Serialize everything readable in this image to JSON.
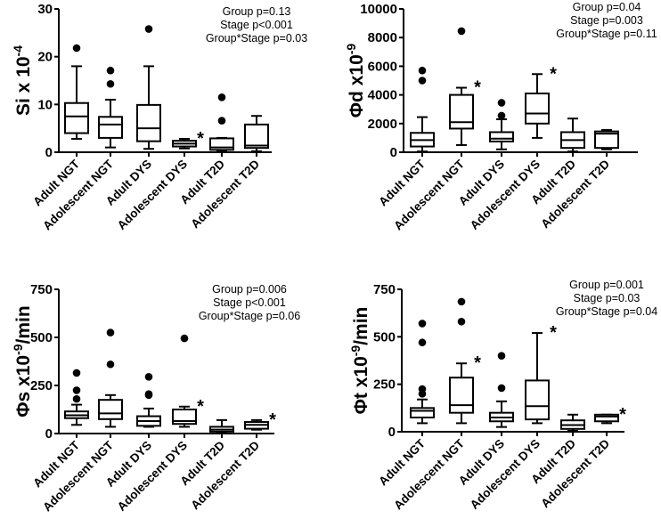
{
  "chart_data": [
    {
      "type": "box",
      "ylabel": "Si x 10",
      "ylabel_exp": "-4",
      "ylabel_suffix": "",
      "ylim": [
        0,
        30
      ],
      "yticks": [
        0,
        10,
        20,
        30
      ],
      "categories": [
        "Adult NGT",
        "Adolescent NGT",
        "Adult DYS",
        "Adolescent DYS",
        "Adult T2D",
        "Adolescent T2D"
      ],
      "stats": [
        "Group p=0.13",
        "Stage p<0.001",
        "Group*Stage p=0.03"
      ],
      "boxes": [
        {
          "lo": 2.8,
          "q1": 4.0,
          "med": 7.5,
          "q3": 10.3,
          "hi": 18,
          "outliers": [
            21.8
          ],
          "sig": false
        },
        {
          "lo": 1.0,
          "q1": 3.0,
          "med": 5.8,
          "q3": 7.4,
          "hi": 11,
          "outliers": [
            14.3,
            17.1
          ],
          "sig": false
        },
        {
          "lo": 0.7,
          "q1": 2.3,
          "med": 5.0,
          "q3": 9.9,
          "hi": 18,
          "outliers": [
            25.8
          ],
          "sig": false
        },
        {
          "lo": 0.8,
          "q1": 1.2,
          "med": 1.8,
          "q3": 2.4,
          "hi": 2.8,
          "outliers": [],
          "sig": true
        },
        {
          "lo": 0.2,
          "q1": 0.5,
          "med": 1.0,
          "q3": 2.9,
          "hi": 3.0,
          "outliers": [
            6.6,
            11.5
          ],
          "sig": false
        },
        {
          "lo": 0.2,
          "q1": 0.9,
          "med": 1.4,
          "q3": 5.8,
          "hi": 7.6,
          "outliers": [],
          "sig": false
        }
      ]
    },
    {
      "type": "box",
      "ylabel": "Φd x10",
      "ylabel_exp": "-9",
      "ylabel_suffix": "",
      "ylim": [
        0,
        10000
      ],
      "yticks": [
        0,
        2000,
        4000,
        6000,
        8000,
        10000
      ],
      "categories": [
        "Adult NGT",
        "Adolescent NGT",
        "Adult DYS",
        "Adolescent DYS",
        "Adult T2D",
        "Adolescent T2D"
      ],
      "stats": [
        "Group p=0.04",
        "Stage p=0.003",
        "Group*Stage p=0.11"
      ],
      "boxes": [
        {
          "lo": 50,
          "q1": 400,
          "med": 850,
          "q3": 1350,
          "hi": 2450,
          "outliers": [
            5000,
            5700
          ],
          "sig": false
        },
        {
          "lo": 500,
          "q1": 1650,
          "med": 2100,
          "q3": 4000,
          "hi": 4500,
          "outliers": [
            8450
          ],
          "sig": true
        },
        {
          "lo": 200,
          "q1": 750,
          "med": 950,
          "q3": 1400,
          "hi": 2300,
          "outliers": [
            2550,
            3450
          ],
          "sig": false
        },
        {
          "lo": 1000,
          "q1": 2000,
          "med": 2700,
          "q3": 4100,
          "hi": 5450,
          "outliers": [],
          "sig": true
        },
        {
          "lo": 50,
          "q1": 300,
          "med": 850,
          "q3": 1400,
          "hi": 2350,
          "outliers": [],
          "sig": false
        },
        {
          "lo": 200,
          "q1": 300,
          "med": 1300,
          "q3": 1450,
          "hi": 1550,
          "outliers": [],
          "sig": false
        }
      ]
    },
    {
      "type": "box",
      "ylabel": "Φs x10",
      "ylabel_exp": "-9",
      "ylabel_suffix": "/min",
      "ylim": [
        0,
        750
      ],
      "yticks": [
        0,
        250,
        500,
        750
      ],
      "categories": [
        "Adult NGT",
        "Adolescent NGT",
        "Adult DYS",
        "Adolescent DYS",
        "Adult T2D",
        "Adolescent T2D"
      ],
      "stats": [
        "Group p=0.006",
        "Stage p<0.001",
        "Group*Stage p=0.06"
      ],
      "boxes": [
        {
          "lo": 45,
          "q1": 80,
          "med": 95,
          "q3": 115,
          "hi": 150,
          "outliers": [
            180,
            225,
            315
          ],
          "sig": false
        },
        {
          "lo": 35,
          "q1": 75,
          "med": 105,
          "q3": 175,
          "hi": 200,
          "outliers": [
            360,
            525
          ],
          "sig": false
        },
        {
          "lo": 35,
          "q1": 40,
          "med": 65,
          "q3": 90,
          "hi": 130,
          "outliers": [
            200,
            205,
            295
          ],
          "sig": false
        },
        {
          "lo": 35,
          "q1": 50,
          "med": 65,
          "q3": 125,
          "hi": 140,
          "outliers": [
            495
          ],
          "sig": true
        },
        {
          "lo": 5,
          "q1": 10,
          "med": 20,
          "q3": 35,
          "hi": 70,
          "outliers": [],
          "sig": false
        },
        {
          "lo": 20,
          "q1": 25,
          "med": 45,
          "q3": 60,
          "hi": 70,
          "outliers": [],
          "sig": true
        }
      ]
    },
    {
      "type": "box",
      "ylabel": "Φt x10",
      "ylabel_exp": "-9",
      "ylabel_suffix": "/min",
      "ylim": [
        0,
        750
      ],
      "yticks": [
        0,
        250,
        500,
        750
      ],
      "categories": [
        "Adult NGT",
        "Adolescent NGT",
        "Adult DYS",
        "Adolescent DYS",
        "Adult T2D",
        "Adolescent T2D"
      ],
      "stats": [
        "Group p=0.001",
        "Stage p=0.03",
        "Group*Stage p=0.04"
      ],
      "boxes": [
        {
          "lo": 45,
          "q1": 75,
          "med": 110,
          "q3": 125,
          "hi": 170,
          "outliers": [
            200,
            225,
            470,
            570
          ],
          "sig": false
        },
        {
          "lo": 45,
          "q1": 100,
          "med": 140,
          "q3": 285,
          "hi": 360,
          "outliers": [
            580,
            685
          ],
          "sig": true
        },
        {
          "lo": 25,
          "q1": 55,
          "med": 75,
          "q3": 100,
          "hi": 160,
          "outliers": [
            230,
            400
          ],
          "sig": false
        },
        {
          "lo": 45,
          "q1": 65,
          "med": 135,
          "q3": 270,
          "hi": 520,
          "outliers": [],
          "sig": true
        },
        {
          "lo": 5,
          "q1": 15,
          "med": 35,
          "q3": 60,
          "hi": 90,
          "outliers": [],
          "sig": false
        },
        {
          "lo": 45,
          "q1": 55,
          "med": 80,
          "q3": 90,
          "hi": 90,
          "outliers": [],
          "sig": true
        }
      ]
    }
  ],
  "significance_marker": "*"
}
